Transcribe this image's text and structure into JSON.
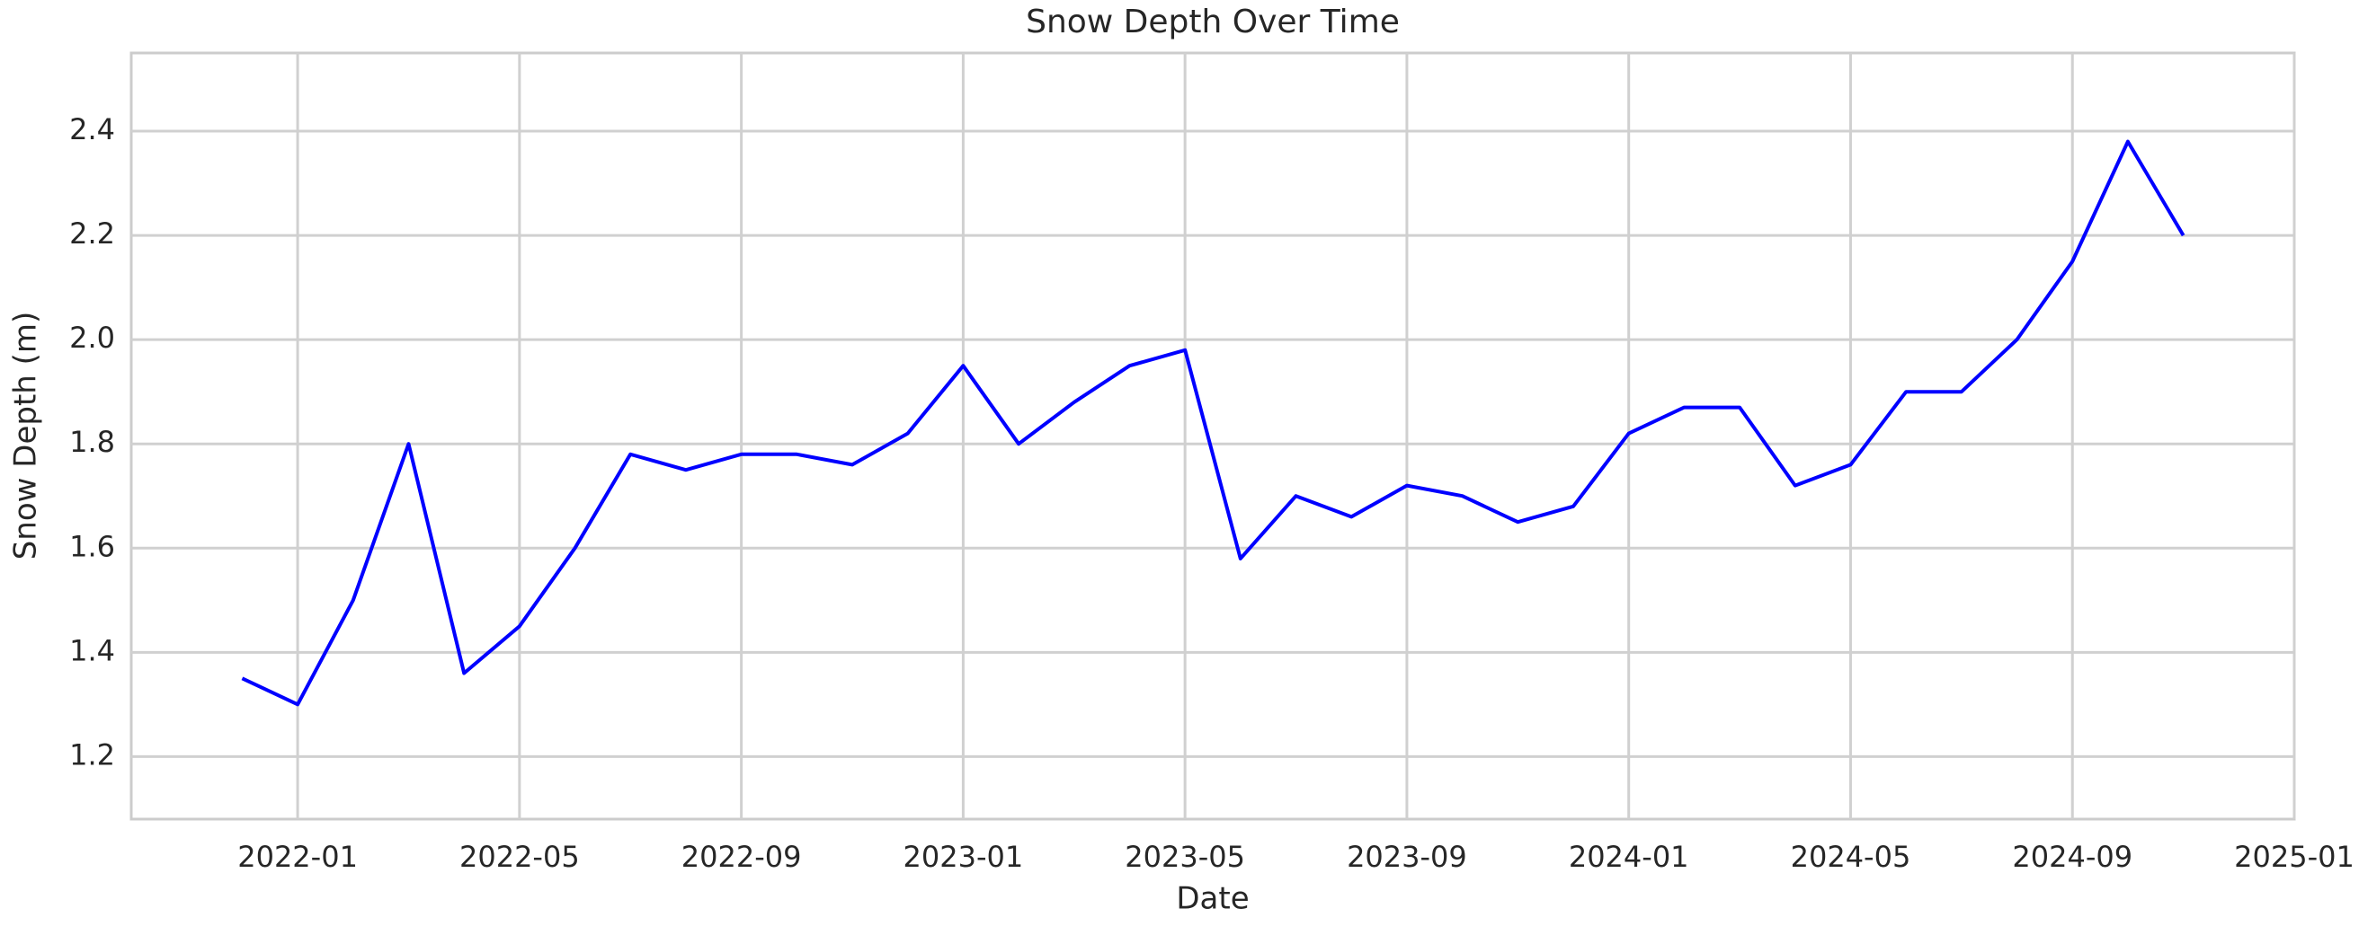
{
  "chart_data": {
    "type": "line",
    "title": "Snow Depth Over Time",
    "x_label": "Date",
    "y_label": "Snow Depth (m)",
    "x": [
      "2021-12",
      "2022-01",
      "2022-02",
      "2022-03",
      "2022-04",
      "2022-05",
      "2022-06",
      "2022-07",
      "2022-08",
      "2022-09",
      "2022-10",
      "2022-11",
      "2022-12",
      "2023-01",
      "2023-02",
      "2023-03",
      "2023-04",
      "2023-05",
      "2023-06",
      "2023-07",
      "2023-08",
      "2023-09",
      "2023-10",
      "2023-11",
      "2023-12",
      "2024-01",
      "2024-02",
      "2024-03",
      "2024-04",
      "2024-05",
      "2024-06",
      "2024-07",
      "2024-08",
      "2024-09",
      "2024-10",
      "2024-11"
    ],
    "values": [
      1.35,
      1.3,
      1.5,
      1.8,
      1.36,
      1.45,
      1.6,
      1.78,
      1.75,
      1.78,
      1.78,
      1.76,
      1.82,
      1.95,
      1.8,
      1.88,
      1.95,
      1.98,
      1.58,
      1.7,
      1.66,
      1.72,
      1.7,
      1.65,
      1.68,
      1.82,
      1.87,
      1.87,
      1.72,
      1.76,
      1.9,
      1.9,
      2.0,
      2.15,
      2.38,
      2.2
    ],
    "color": "#0000ff",
    "xlim": [
      "2021-10",
      "2025-01"
    ],
    "xticks": [
      "2022-01",
      "2022-05",
      "2022-09",
      "2023-01",
      "2023-05",
      "2023-09",
      "2024-01",
      "2024-05",
      "2024-09",
      "2025-01"
    ],
    "ylim": [
      1.08,
      2.55
    ],
    "yticks": [
      1.2,
      1.4,
      1.6,
      1.8,
      {
        "value": 2,
        "label": "2.0"
      },
      2.2,
      2.4
    ],
    "grid": true
  }
}
